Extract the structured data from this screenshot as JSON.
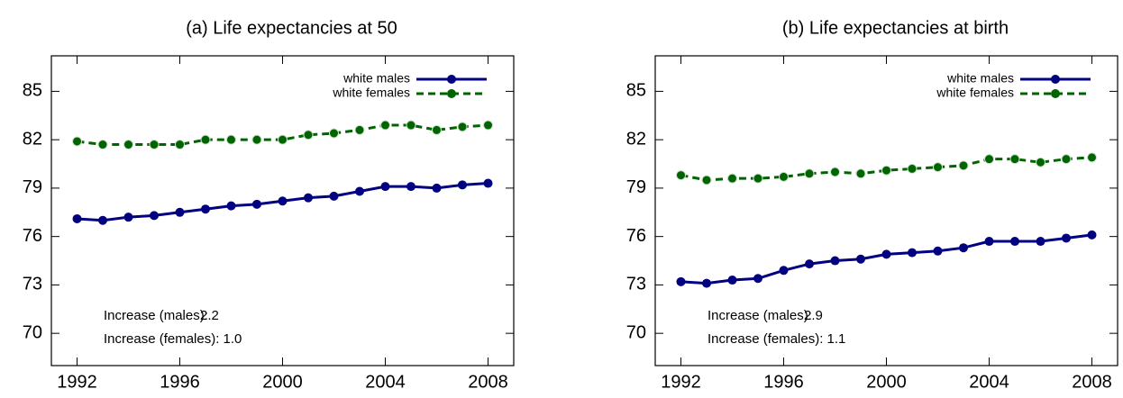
{
  "chart_data": [
    {
      "type": "line",
      "title": "(a) Life expectancies at 50",
      "x": [
        1992,
        1993,
        1994,
        1995,
        1996,
        1997,
        1998,
        1999,
        2000,
        2001,
        2002,
        2003,
        2004,
        2005,
        2006,
        2007,
        2008
      ],
      "series": [
        {
          "name": "white males",
          "color": "#000080",
          "dash": false,
          "values": [
            77.1,
            77.0,
            77.2,
            77.3,
            77.5,
            77.7,
            77.9,
            78.0,
            78.2,
            78.4,
            78.5,
            78.8,
            79.1,
            79.1,
            79.0,
            79.2,
            79.3
          ]
        },
        {
          "name": "white females",
          "color": "#006400",
          "dash": true,
          "values": [
            81.9,
            81.7,
            81.7,
            81.7,
            81.7,
            82.0,
            82.0,
            82.0,
            82.0,
            82.3,
            82.4,
            82.6,
            82.9,
            82.9,
            82.6,
            82.8,
            82.9
          ]
        }
      ],
      "xlim": [
        1991,
        2009
      ],
      "xticks": [
        1992,
        1996,
        2000,
        2004,
        2008
      ],
      "ylim": [
        68,
        87.2
      ],
      "yticks": [
        70,
        73,
        76,
        79,
        82,
        85
      ],
      "legend": "top-right",
      "annotations": [
        {
          "text": "Increase (males):",
          "color": "#000080"
        },
        {
          "text": "2.2",
          "color": "#000080"
        },
        {
          "text": "Increase (females): 1.0",
          "color": "#006400"
        }
      ]
    },
    {
      "type": "line",
      "title": "(b) Life expectancies at birth",
      "x": [
        1992,
        1993,
        1994,
        1995,
        1996,
        1997,
        1998,
        1999,
        2000,
        2001,
        2002,
        2003,
        2004,
        2005,
        2006,
        2007,
        2008
      ],
      "series": [
        {
          "name": "white males",
          "color": "#000080",
          "dash": false,
          "values": [
            73.2,
            73.1,
            73.3,
            73.4,
            73.9,
            74.3,
            74.5,
            74.6,
            74.9,
            75.0,
            75.1,
            75.3,
            75.7,
            75.7,
            75.7,
            75.9,
            76.1
          ]
        },
        {
          "name": "white females",
          "color": "#006400",
          "dash": true,
          "values": [
            79.8,
            79.5,
            79.6,
            79.6,
            79.7,
            79.9,
            80.0,
            79.9,
            80.1,
            80.2,
            80.3,
            80.4,
            80.8,
            80.8,
            80.6,
            80.8,
            80.9
          ]
        }
      ],
      "xlim": [
        1991,
        2009
      ],
      "xticks": [
        1992,
        1996,
        2000,
        2004,
        2008
      ],
      "ylim": [
        68,
        87.2
      ],
      "yticks": [
        70,
        73,
        76,
        79,
        82,
        85
      ],
      "legend": "top-right",
      "annotations": [
        {
          "text": "Increase (males):",
          "color": "#000080"
        },
        {
          "text": "2.9",
          "color": "#000080"
        },
        {
          "text": "Increase (females): 1.1",
          "color": "#006400"
        }
      ]
    }
  ]
}
